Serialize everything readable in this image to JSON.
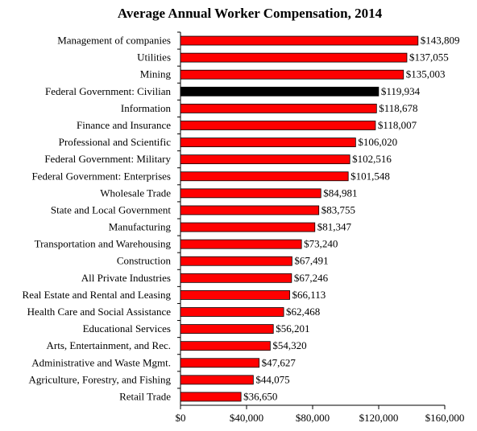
{
  "chart_data": {
    "type": "hbar",
    "title": "Average Annual Worker Compensation, 2014",
    "categories": [
      "Management of companies",
      "Utilities",
      "Mining",
      "Federal Government: Civilian",
      "Information",
      "Finance and Insurance",
      "Professional and Scientific",
      "Federal Government: Military",
      "Federal Government: Enterprises",
      "Wholesale Trade",
      "State and Local Government",
      "Manufacturing",
      "Transportation and Warehousing",
      "Construction",
      "All Private Industries",
      "Real Estate and Rental and Leasing",
      "Health Care and Social Assistance",
      "Educational Services",
      "Arts, Entertainment, and Rec.",
      "Administrative and Waste Mgmt.",
      "Agriculture, Forestry, and Fishing",
      "Retail Trade"
    ],
    "values": [
      143809,
      137055,
      135003,
      119934,
      118678,
      118007,
      106020,
      102516,
      101548,
      84981,
      83755,
      81347,
      73240,
      67491,
      67246,
      66113,
      62468,
      56201,
      54320,
      47627,
      44075,
      36650
    ],
    "value_labels": [
      "$143,809",
      "$137,055",
      "$135,003",
      "$119,934",
      "$118,678",
      "$118,007",
      "$106,020",
      "$102,516",
      "$101,548",
      "$84,981",
      "$83,755",
      "$81,347",
      "$73,240",
      "$67,491",
      "$67,246",
      "$66,113",
      "$62,468",
      "$56,201",
      "$54,320",
      "$47,627",
      "$44,075",
      "$36,650"
    ],
    "colors": [
      "#ff0000",
      "#ff0000",
      "#ff0000",
      "#000000",
      "#ff0000",
      "#ff0000",
      "#ff0000",
      "#ff0000",
      "#ff0000",
      "#ff0000",
      "#ff0000",
      "#ff0000",
      "#ff0000",
      "#ff0000",
      "#ff0000",
      "#ff0000",
      "#ff0000",
      "#ff0000",
      "#ff0000",
      "#ff0000",
      "#ff0000",
      "#ff0000"
    ],
    "xlim": [
      0,
      160000
    ],
    "xticks": [
      {
        "value": 0,
        "label": "$0"
      },
      {
        "value": 40000,
        "label": "$40,000"
      },
      {
        "value": 80000,
        "label": "$80,000"
      },
      {
        "value": 120000,
        "label": "$120,000"
      },
      {
        "value": 160000,
        "label": "$160,000"
      }
    ]
  }
}
